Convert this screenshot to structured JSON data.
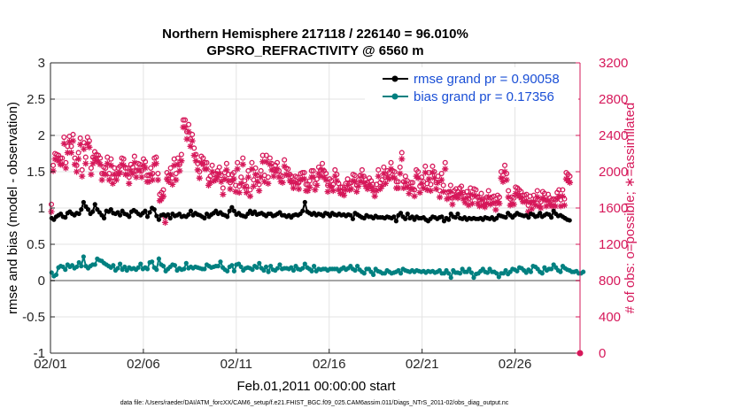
{
  "chart_data": {
    "type": "line",
    "title": "Northern Hemisphere 217118 / 226140 = 96.010%",
    "subtitle": "GPSRO_REFRACTIVITY @ 6560 m",
    "xlabel": "Feb.01,2011 00:00:00 start",
    "ylabel": "rmse and bias (model - observation)",
    "y2label": "# of obs: o=possible; ∗=assimilated",
    "footnote": "data file: /Users/raeder/DAI/ATM_forcXX/CAM6_setup/f.e21.FHIST_BGC.f09_025.CAM6assim.011/Diags_NTrS_2011-02/obs_diag_output.nc",
    "xlim": [
      0,
      28.5
    ],
    "ylim": [
      -1,
      3
    ],
    "y2lim": [
      0,
      3200
    ],
    "x_ticks": [
      0,
      5,
      10,
      15,
      20,
      25
    ],
    "x_tick_labels": [
      "02/01",
      "02/06",
      "02/11",
      "02/16",
      "02/21",
      "02/26"
    ],
    "y_ticks": [
      -1,
      -0.5,
      0,
      0.5,
      1,
      1.5,
      2,
      2.5,
      3
    ],
    "y_tick_labels": [
      "-1",
      "-0.5",
      "0",
      "0.5",
      "1",
      "1.5",
      "2",
      "2.5",
      "3"
    ],
    "y2_ticks": [
      0,
      400,
      800,
      1200,
      1600,
      2000,
      2400,
      2800,
      3200
    ],
    "y2_tick_labels": [
      "0",
      "400",
      "800",
      "1200",
      "1600",
      "2000",
      "2400",
      "2800",
      "3200"
    ],
    "grid": true,
    "legend_position": "top-right",
    "series": [
      {
        "name": "rmse grand pr = 0.90058",
        "color": "#000000",
        "axis": "left",
        "values": [
          0.86,
          0.84,
          0.88,
          0.9,
          0.92,
          0.88,
          0.87,
          0.93,
          0.95,
          0.92,
          0.9,
          0.93,
          0.92,
          0.98,
          1.08,
          1.02,
          0.98,
          0.92,
          0.95,
          1.05,
          0.98,
          0.94,
          0.9,
          0.86,
          0.96,
          0.95,
          0.98,
          0.93,
          0.92,
          0.94,
          0.9,
          0.96,
          0.92,
          0.91,
          0.88,
          0.95,
          0.97,
          0.95,
          0.92,
          0.9,
          0.93,
          0.96,
          0.88,
          0.94,
          1.0,
          0.98,
          0.89,
          0.84,
          0.9,
          0.91,
          0.89,
          0.91,
          0.86,
          0.92,
          0.89,
          0.9,
          0.92,
          0.88,
          0.89,
          0.88,
          0.91,
          0.96,
          0.9,
          0.93,
          0.91,
          0.9,
          0.88,
          0.86,
          0.92,
          0.88,
          0.91,
          0.93,
          0.96,
          0.92,
          0.94,
          0.91,
          0.9,
          0.88,
          0.96,
          1.01,
          0.96,
          0.91,
          0.93,
          0.9,
          0.89,
          0.88,
          0.92,
          0.96,
          0.92,
          0.95,
          0.91,
          0.92,
          0.93,
          0.91,
          0.89,
          0.92,
          0.92,
          0.89,
          0.9,
          0.92,
          0.94,
          0.9,
          0.9,
          0.88,
          0.9,
          0.87,
          0.9,
          0.91,
          0.9,
          0.92,
          0.96,
          1.08,
          0.95,
          0.93,
          0.91,
          0.93,
          0.9,
          0.92,
          0.91,
          0.89,
          0.93,
          0.92,
          0.89,
          0.93,
          0.91,
          0.9,
          0.92,
          0.9,
          0.91,
          0.89,
          0.91,
          0.9,
          0.85,
          0.93,
          0.91,
          0.89,
          0.87,
          0.86,
          0.9,
          0.88,
          0.88,
          0.86,
          0.89,
          0.87,
          0.87,
          0.87,
          0.86,
          0.88,
          0.87,
          0.86,
          0.88,
          0.82,
          0.9,
          0.93,
          0.88,
          0.85,
          0.92,
          0.86,
          0.88,
          0.84,
          0.88,
          0.86,
          0.86,
          0.87,
          0.84,
          0.82,
          0.85,
          0.88,
          0.87,
          0.85,
          0.87,
          0.88,
          0.82,
          0.86,
          0.84,
          0.92,
          0.88,
          0.87,
          0.92,
          0.86,
          0.85,
          0.87,
          0.84,
          0.86,
          0.85,
          0.86,
          0.85,
          0.85,
          0.86,
          0.84,
          0.87,
          0.86,
          0.85,
          0.87,
          0.84,
          0.86,
          0.9,
          0.89,
          0.88,
          0.87,
          0.93,
          0.9,
          0.87,
          0.9,
          0.93,
          0.91,
          0.9,
          0.89,
          0.9,
          0.87,
          0.92,
          0.91,
          0.88,
          0.89,
          0.93,
          0.88,
          0.9,
          0.92,
          0.91,
          0.87,
          0.96,
          0.92,
          0.89,
          0.9,
          0.88,
          0.86,
          0.84,
          0.83
        ]
      },
      {
        "name": "bias grand pr = 0.17356",
        "color": "#008080",
        "axis": "left",
        "values": [
          0.11,
          0.06,
          0.08,
          0.18,
          0.2,
          0.19,
          0.15,
          0.22,
          0.19,
          0.21,
          0.17,
          0.19,
          0.25,
          0.2,
          0.33,
          0.2,
          0.17,
          0.2,
          0.22,
          0.22,
          0.3,
          0.28,
          0.27,
          0.24,
          0.22,
          0.2,
          0.18,
          0.21,
          0.14,
          0.17,
          0.23,
          0.15,
          0.19,
          0.14,
          0.18,
          0.16,
          0.17,
          0.15,
          0.18,
          0.23,
          0.16,
          0.18,
          0.16,
          0.25,
          0.26,
          0.18,
          0.15,
          0.3,
          0.22,
          0.2,
          0.13,
          0.16,
          0.19,
          0.22,
          0.21,
          0.14,
          0.17,
          0.15,
          0.16,
          0.24,
          0.17,
          0.19,
          0.17,
          0.19,
          0.18,
          0.17,
          0.16,
          0.16,
          0.22,
          0.2,
          0.18,
          0.19,
          0.2,
          0.2,
          0.26,
          0.18,
          0.15,
          0.13,
          0.19,
          0.21,
          0.13,
          0.22,
          0.23,
          0.19,
          0.14,
          0.17,
          0.18,
          0.17,
          0.15,
          0.2,
          0.18,
          0.24,
          0.17,
          0.14,
          0.19,
          0.12,
          0.2,
          0.15,
          0.14,
          0.17,
          0.22,
          0.16,
          0.17,
          0.17,
          0.16,
          0.18,
          0.14,
          0.2,
          0.16,
          0.15,
          0.17,
          0.23,
          0.18,
          0.16,
          0.13,
          0.2,
          0.13,
          0.16,
          0.15,
          0.16,
          0.16,
          0.14,
          0.16,
          0.16,
          0.16,
          0.16,
          0.13,
          0.16,
          0.18,
          0.15,
          0.17,
          0.2,
          0.16,
          0.14,
          0.2,
          0.15,
          0.12,
          0.1,
          0.16,
          0.16,
          0.12,
          0.08,
          0.16,
          0.13,
          0.12,
          0.1,
          0.1,
          0.14,
          0.12,
          0.1,
          0.11,
          0.12,
          0.14,
          0.1,
          0.16,
          0.14,
          0.13,
          0.12,
          0.14,
          0.12,
          0.14,
          0.13,
          0.12,
          0.13,
          0.11,
          0.13,
          0.12,
          0.13,
          0.11,
          0.12,
          0.14,
          0.1,
          0.1,
          0.14,
          0.1,
          0.04,
          0.14,
          0.11,
          0.11,
          0.1,
          0.16,
          0.12,
          0.12,
          0.16,
          0.11,
          0.04,
          0.09,
          0.1,
          0.13,
          0.16,
          0.12,
          0.11,
          0.16,
          0.12,
          0.12,
          0.1,
          0.05,
          0.1,
          0.1,
          0.14,
          0.09,
          0.12,
          0.16,
          0.15,
          0.13,
          0.18,
          0.17,
          0.14,
          0.11,
          0.15,
          0.12,
          0.2,
          0.19,
          0.16,
          0.12,
          0.1,
          0.18,
          0.14,
          0.16,
          0.16,
          0.22,
          0.18,
          0.14,
          0.12,
          0.2,
          0.17,
          0.15,
          0.14,
          0.12,
          0.12,
          0.13,
          0.1,
          0.1,
          0.12
        ]
      },
      {
        "name": "possible",
        "color": "#d6185a",
        "axis": "right",
        "marker": "o",
        "values": [
          1640,
          2070,
          2200,
          2190,
          2180,
          2150,
          2150,
          2380,
          2100,
          2280,
          2390,
          2280,
          2410,
          2150,
          2070,
          2210,
          2370,
          2020,
          2320,
          2160,
          2380,
          2340,
          2040,
          2160,
          2220,
          2190,
          2180,
          2150,
          1980,
          2050,
          2040,
          2160,
          1980,
          2140,
          1940,
          2040,
          1980,
          2040,
          2060,
          2150,
          2140,
          2040,
          2040,
          1940,
          2080,
          2050,
          2170,
          2010,
          2090,
          2080,
          2010,
          2140,
          2110,
          1960,
          1960,
          2040,
          1980,
          2150,
          2160,
          1980,
          1750,
          1770,
          1800,
          1500,
          1990,
          1960,
          2040,
          1930,
          2140,
          1980,
          2150,
          2080,
          2190,
          2570,
          2570,
          2440,
          2520,
          2360,
          2410,
          2260,
          2190,
          2090,
          2000,
          2170,
          2150,
          2100,
          2100,
          1920,
          1950,
          2070,
          1970,
          1980,
          2010,
          2050,
          1960,
          1820,
          1990,
          2090,
          1970,
          1880,
          1970,
          1990,
          1850,
          2100,
          1840,
          1940,
          2150,
          1900,
          1840,
          2010,
          1800,
          2100,
          1910,
          2040,
          1960,
          1860,
          2010,
          2180,
          1960,
          2180,
          1940,
          2150,
          2090,
          2020,
          2070,
          2100,
          2010,
          1960,
          1950,
          2130,
          2040,
          2030,
          1970,
          1950,
          1890,
          1950,
          1940,
          1880,
          1980,
          1990,
          1990,
          1860,
          1860,
          1900,
          2010,
          2010,
          1870,
          1920,
          2050,
          2020,
          2090,
          2010,
          1980,
          1850,
          1920,
          1900,
          1860,
          2020,
          1970,
          1870,
          1830,
          1830,
          1810,
          1870,
          1920,
          1870,
          1880,
          1970,
          1960,
          1850,
          1910,
          1960,
          2020,
          1950,
          1910,
          1880,
          1930,
          1900,
          1860,
          1800,
          1860,
          2020,
          1880,
          1910,
          2050,
          1940,
          2010,
          1990,
          2100,
          2010,
          2000,
          1890,
          1890,
          2050,
          2210,
          1890,
          1950,
          1900,
          1830,
          1880,
          1880,
          1800,
          2020,
          2000,
          1840,
          1940,
          1890,
          2060,
          1870,
          1990,
          1860,
          2060,
          2000,
          1880,
          1950,
          1790,
          1980,
          1850,
          2100,
          1770,
          1780,
          1850,
          1710,
          1790,
          1810,
          1780,
          1820,
          1840,
          1770,
          1730,
          1780,
          1700,
          1820,
          1720,
          1810,
          1800,
          1720,
          1690,
          1760,
          1700,
          1680,
          1720,
          1790,
          1710,
          1720,
          1730,
          1650,
          1740,
          1720,
          2000,
          1960,
          2070,
          1980,
          1790,
          1700,
          1720,
          1710,
          1830,
          1820,
          1800,
          1780,
          1740,
          1740,
          1750,
          1630,
          1730,
          1660,
          1740,
          1700,
          1790,
          1690,
          1670,
          1780,
          1760,
          1690,
          1750,
          1710,
          1690,
          1700,
          1690,
          1770,
          1800,
          1690,
          1800,
          1700,
          1990,
          1970,
          1950
        ]
      },
      {
        "name": "assimilated",
        "color": "#d6185a",
        "axis": "right",
        "marker": "*",
        "values": [
          1560,
          2010,
          2140,
          2130,
          2120,
          2080,
          2080,
          2310,
          2040,
          2210,
          2330,
          2210,
          2340,
          2080,
          2000,
          2140,
          2300,
          1950,
          2250,
          2090,
          2310,
          2270,
          1970,
          2090,
          2150,
          2120,
          2110,
          2080,
          1910,
          1980,
          1970,
          2090,
          1910,
          2070,
          1870,
          1970,
          1910,
          1970,
          1990,
          2080,
          2070,
          1970,
          1970,
          1870,
          2010,
          1980,
          2100,
          1940,
          2020,
          2010,
          1940,
          2070,
          2040,
          1890,
          1890,
          1970,
          1910,
          2080,
          2090,
          1910,
          1680,
          1700,
          1730,
          1440,
          1920,
          1890,
          1970,
          1860,
          2070,
          1910,
          2080,
          2010,
          2120,
          2490,
          2490,
          2360,
          2440,
          2280,
          2340,
          2180,
          2120,
          2020,
          1930,
          2100,
          2080,
          2030,
          2030,
          1850,
          1880,
          2000,
          1900,
          1910,
          1940,
          1980,
          1890,
          1750,
          1920,
          2020,
          1900,
          1810,
          1900,
          1920,
          1780,
          2030,
          1770,
          1870,
          2080,
          1830,
          1770,
          1940,
          1730,
          2030,
          1840,
          1970,
          1890,
          1790,
          1940,
          2110,
          1890,
          2110,
          1870,
          2080,
          2020,
          1950,
          2000,
          2030,
          1940,
          1890,
          1880,
          2060,
          1970,
          1960,
          1900,
          1880,
          1820,
          1880,
          1870,
          1810,
          1910,
          1920,
          1920,
          1790,
          1790,
          1830,
          1940,
          1940,
          1800,
          1850,
          1980,
          1950,
          2020,
          1940,
          1910,
          1780,
          1850,
          1830,
          1790,
          1950,
          1900,
          1800,
          1760,
          1760,
          1740,
          1800,
          1850,
          1800,
          1810,
          1900,
          1890,
          1780,
          1840,
          1890,
          1950,
          1880,
          1840,
          1810,
          1860,
          1830,
          1790,
          1730,
          1790,
          1950,
          1810,
          1840,
          1980,
          1870,
          1940,
          1920,
          2030,
          1940,
          1930,
          1820,
          1820,
          1980,
          2140,
          1820,
          1880,
          1830,
          1760,
          1810,
          1810,
          1730,
          1950,
          1930,
          1770,
          1870,
          1820,
          1990,
          1800,
          1920,
          1790,
          1990,
          1930,
          1810,
          1880,
          1720,
          1910,
          1780,
          2030,
          1700,
          1710,
          1780,
          1640,
          1720,
          1740,
          1710,
          1750,
          1770,
          1700,
          1660,
          1710,
          1630,
          1750,
          1650,
          1740,
          1730,
          1650,
          1620,
          1690,
          1630,
          1610,
          1650,
          1720,
          1640,
          1650,
          1660,
          1580,
          1670,
          1650,
          1930,
          1890,
          2000,
          1910,
          1720,
          1630,
          1650,
          1640,
          1760,
          1750,
          1730,
          1710,
          1670,
          1670,
          1680,
          1560,
          1660,
          1590,
          1670,
          1630,
          1720,
          1620,
          1600,
          1710,
          1690,
          1620,
          1680,
          1640,
          1620,
          1630,
          1620,
          1700,
          1730,
          1620,
          1730,
          1630,
          1920,
          1900,
          1880
        ]
      }
    ]
  }
}
